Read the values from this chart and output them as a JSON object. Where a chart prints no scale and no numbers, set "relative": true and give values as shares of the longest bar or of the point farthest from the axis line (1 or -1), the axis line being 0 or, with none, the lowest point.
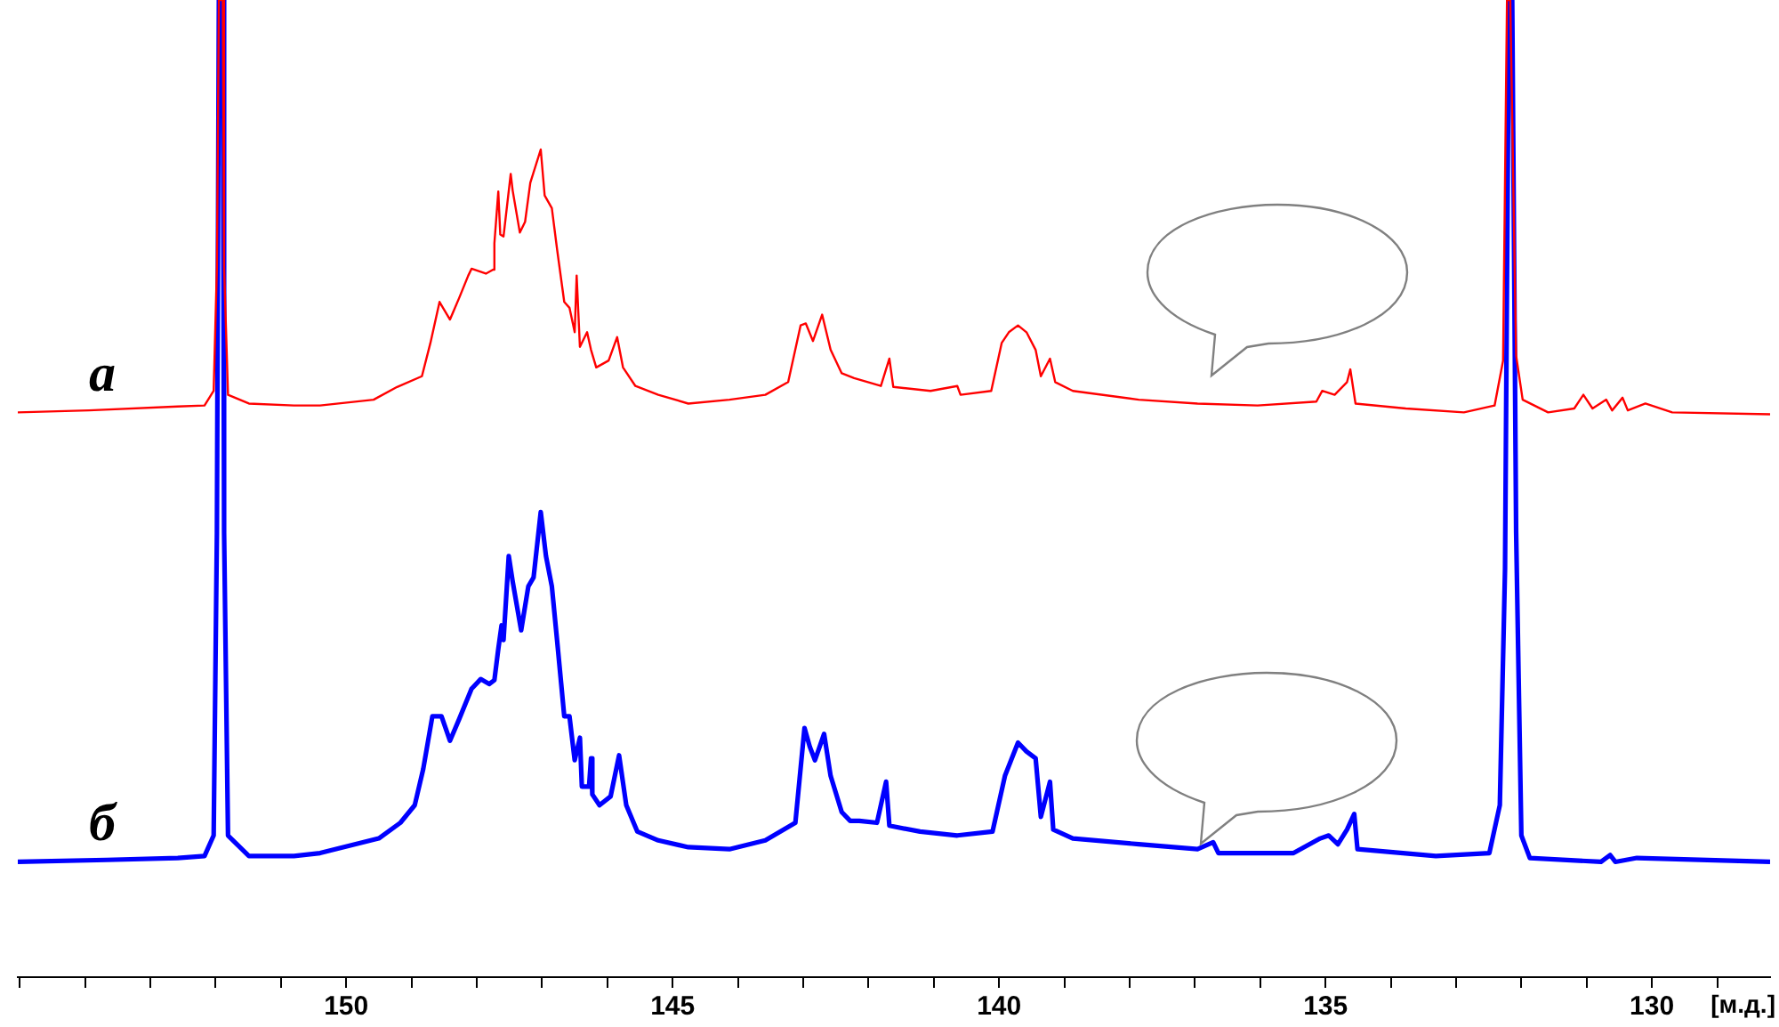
{
  "chart_data": {
    "type": "line",
    "xlabel": "[м.д.]",
    "relative": true,
    "legend": false,
    "grid": false,
    "marker": "none",
    "line_style": "solid",
    "xlim": [
      155.03,
      128.19
    ],
    "xticks": [
      {
        "value": 155,
        "label": null
      },
      {
        "value": 154,
        "label": null
      },
      {
        "value": 153,
        "label": null
      },
      {
        "value": 152,
        "label": null
      },
      {
        "value": 151,
        "label": null
      },
      150,
      {
        "value": 149,
        "label": null
      },
      {
        "value": 148,
        "label": null
      },
      {
        "value": 147,
        "label": null
      },
      {
        "value": 146,
        "label": null
      },
      145,
      {
        "value": 144,
        "label": null
      },
      {
        "value": 143,
        "label": null
      },
      {
        "value": 142,
        "label": null
      },
      {
        "value": 141,
        "label": null
      },
      140,
      {
        "value": 139,
        "label": null
      },
      {
        "value": 138,
        "label": null
      },
      {
        "value": 137,
        "label": null
      },
      {
        "value": 136,
        "label": null
      },
      135,
      {
        "value": 134,
        "label": null
      },
      {
        "value": 133,
        "label": null
      },
      {
        "value": 132,
        "label": null
      },
      {
        "value": 131,
        "label": null
      },
      130,
      {
        "value": 129,
        "label": null
      }
    ],
    "series": [
      {
        "name": "а",
        "color": "#ff0000",
        "x": [
          155.03,
          153.94,
          152.58,
          152.17,
          152.03,
          151.98,
          151.95,
          151.89,
          151.87,
          151.81,
          151.49,
          150.8,
          150.4,
          149.58,
          149.22,
          148.84,
          148.71,
          148.57,
          148.41,
          148.27,
          148.13,
          148.08,
          147.86,
          147.75,
          147.73,
          147.67,
          147.64,
          147.59,
          147.48,
          147.45,
          147.34,
          147.26,
          147.18,
          147.02,
          146.96,
          146.85,
          146.77,
          146.66,
          146.58,
          146.5,
          146.47,
          146.42,
          146.31,
          146.25,
          146.17,
          145.98,
          145.85,
          145.76,
          145.57,
          145.22,
          144.76,
          144.13,
          143.58,
          143.23,
          143.04,
          142.96,
          142.85,
          142.71,
          142.58,
          142.41,
          142.22,
          141.81,
          141.68,
          141.62,
          141.05,
          140.64,
          140.59,
          140.12,
          139.96,
          139.85,
          139.71,
          139.58,
          139.44,
          139.36,
          139.22,
          139.14,
          138.87,
          137.86,
          136.96,
          136.04,
          135.14,
          135.05,
          134.86,
          134.67,
          134.62,
          134.54,
          133.77,
          132.88,
          132.41,
          132.28,
          132.22,
          132.17,
          132.08,
          131.98,
          131.59,
          131.19,
          131.05,
          130.91,
          130.7,
          130.61,
          130.45,
          130.37,
          130.1,
          129.69,
          128.19
        ],
        "values": [
          0.578,
          0.58,
          0.584,
          0.585,
          0.6,
          0.727,
          1,
          1,
          0.727,
          0.596,
          0.587,
          0.585,
          0.585,
          0.591,
          0.604,
          0.615,
          0.649,
          0.691,
          0.673,
          0.695,
          0.718,
          0.725,
          0.72,
          0.724,
          0.751,
          0.804,
          0.76,
          0.758,
          0.822,
          0.805,
          0.762,
          0.773,
          0.813,
          0.847,
          0.8,
          0.787,
          0.745,
          0.691,
          0.685,
          0.66,
          0.718,
          0.645,
          0.66,
          0.642,
          0.624,
          0.631,
          0.655,
          0.624,
          0.605,
          0.596,
          0.587,
          0.591,
          0.596,
          0.609,
          0.667,
          0.669,
          0.651,
          0.678,
          0.642,
          0.618,
          0.613,
          0.605,
          0.633,
          0.604,
          0.6,
          0.605,
          0.596,
          0.6,
          0.649,
          0.66,
          0.667,
          0.66,
          0.642,
          0.615,
          0.633,
          0.609,
          0.6,
          0.591,
          0.587,
          0.585,
          0.589,
          0.6,
          0.596,
          0.609,
          0.622,
          0.587,
          0.582,
          0.578,
          0.585,
          0.631,
          1,
          1,
          0.636,
          0.591,
          0.578,
          0.582,
          0.596,
          0.582,
          0.591,
          0.58,
          0.593,
          0.58,
          0.587,
          0.578,
          0.576
        ]
      },
      {
        "name": "б",
        "color": "#0000ff",
        "x": [
          155.03,
          153.67,
          152.58,
          152.17,
          152.03,
          151.98,
          151.95,
          151.89,
          151.87,
          151.81,
          151.49,
          150.8,
          150.4,
          149.5,
          149.17,
          148.95,
          148.82,
          148.68,
          148.54,
          148.41,
          148.27,
          148.08,
          147.94,
          147.81,
          147.73,
          147.67,
          147.62,
          147.59,
          147.51,
          147.45,
          147.32,
          147.21,
          147.13,
          147.02,
          146.94,
          146.85,
          146.77,
          146.66,
          146.58,
          146.5,
          146.42,
          146.39,
          146.28,
          146.25,
          146.23,
          146.12,
          145.95,
          145.82,
          145.71,
          145.54,
          145.22,
          144.76,
          144.13,
          143.58,
          143.12,
          142.98,
          142.9,
          142.82,
          142.68,
          142.58,
          142.41,
          142.28,
          142.14,
          141.87,
          141.73,
          141.68,
          141.21,
          140.64,
          140.1,
          139.91,
          139.71,
          139.58,
          139.44,
          139.36,
          139.22,
          139.17,
          138.87,
          137.86,
          136.96,
          136.72,
          136.64,
          135.49,
          135.08,
          134.95,
          134.81,
          134.67,
          134.56,
          134.51,
          133.31,
          132.49,
          132.33,
          132.25,
          132.19,
          132.14,
          132.08,
          132,
          131.87,
          130.78,
          130.64,
          130.56,
          130.23,
          128.19
        ],
        "values": [
          0.118,
          0.12,
          0.122,
          0.124,
          0.145,
          0.455,
          1,
          1,
          0.455,
          0.145,
          0.124,
          0.124,
          0.127,
          0.142,
          0.158,
          0.176,
          0.213,
          0.267,
          0.267,
          0.242,
          0.264,
          0.295,
          0.305,
          0.3,
          0.304,
          0.336,
          0.36,
          0.345,
          0.431,
          0.405,
          0.355,
          0.4,
          0.409,
          0.476,
          0.431,
          0.4,
          0.345,
          0.267,
          0.267,
          0.222,
          0.245,
          0.195,
          0.195,
          0.224,
          0.187,
          0.176,
          0.185,
          0.227,
          0.176,
          0.149,
          0.14,
          0.133,
          0.131,
          0.14,
          0.158,
          0.255,
          0.236,
          0.222,
          0.249,
          0.206,
          0.169,
          0.16,
          0.16,
          0.158,
          0.2,
          0.155,
          0.149,
          0.145,
          0.149,
          0.206,
          0.24,
          0.231,
          0.224,
          0.164,
          0.2,
          0.151,
          0.142,
          0.136,
          0.131,
          0.138,
          0.127,
          0.127,
          0.142,
          0.145,
          0.136,
          0.151,
          0.167,
          0.131,
          0.124,
          0.127,
          0.176,
          0.418,
          1,
          1,
          0.455,
          0.145,
          0.122,
          0.118,
          0.125,
          0.118,
          0.122,
          0.118
        ]
      }
    ]
  }
}
